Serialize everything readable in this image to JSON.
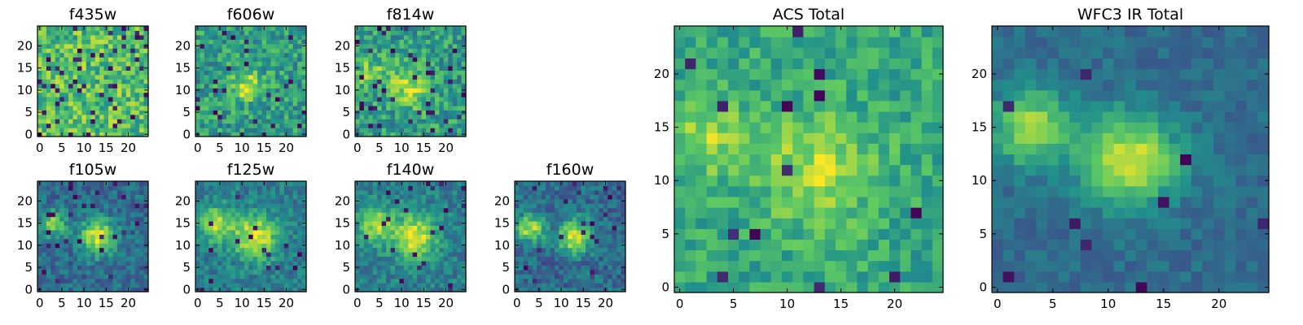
{
  "figure": {
    "colormap": "viridis",
    "colormap_stops": [
      "#440154",
      "#3b528b",
      "#21918c",
      "#5ec962",
      "#fde725"
    ]
  },
  "chart_data": [
    {
      "type": "heatmap",
      "title": "f435w",
      "grid_size": 25,
      "xticks": [
        "0",
        "5",
        "10",
        "15",
        "20"
      ],
      "yticks": [
        "0",
        "5",
        "10",
        "15",
        "20"
      ],
      "xlim": [
        -0.5,
        24.5
      ],
      "ylim": [
        -0.5,
        24.5
      ],
      "noise": 0.22,
      "dark_fraction": 0.06,
      "background": 0.7,
      "sources": []
    },
    {
      "type": "heatmap",
      "title": "f606w",
      "grid_size": 25,
      "xticks": [
        "0",
        "5",
        "10",
        "15",
        "20"
      ],
      "yticks": [
        "0",
        "5",
        "10",
        "15",
        "20"
      ],
      "xlim": [
        -0.5,
        24.5
      ],
      "ylim": [
        -0.5,
        24.5
      ],
      "noise": 0.2,
      "dark_fraction": 0.05,
      "background": 0.55,
      "sources": [
        {
          "x": 11,
          "y": 11,
          "sigma": 2.5,
          "amp": 0.35
        }
      ]
    },
    {
      "type": "heatmap",
      "title": "f814w",
      "grid_size": 25,
      "xticks": [
        "0",
        "5",
        "10",
        "15",
        "20"
      ],
      "yticks": [
        "0",
        "5",
        "10",
        "15",
        "20"
      ],
      "xlim": [
        -0.5,
        24.5
      ],
      "ylim": [
        -0.5,
        24.5
      ],
      "noise": 0.2,
      "dark_fraction": 0.05,
      "background": 0.55,
      "sources": [
        {
          "x": 12,
          "y": 11,
          "sigma": 3.5,
          "amp": 0.3
        },
        {
          "x": 3,
          "y": 14,
          "sigma": 2.5,
          "amp": 0.25
        }
      ]
    },
    {
      "type": "heatmap",
      "title": "f105w",
      "grid_size": 25,
      "xticks": [
        "0",
        "5",
        "10",
        "15",
        "20"
      ],
      "yticks": [
        "0",
        "5",
        "10",
        "15",
        "20"
      ],
      "xlim": [
        -0.5,
        24.5
      ],
      "ylim": [
        -0.5,
        24.5
      ],
      "noise": 0.14,
      "dark_fraction": 0.04,
      "background": 0.35,
      "sources": [
        {
          "x": 13,
          "y": 12,
          "sigma": 2.8,
          "amp": 0.6
        },
        {
          "x": 3,
          "y": 15,
          "sigma": 2,
          "amp": 0.5
        }
      ]
    },
    {
      "type": "heatmap",
      "title": "f125w",
      "grid_size": 25,
      "xticks": [
        "0",
        "5",
        "10",
        "15",
        "20"
      ],
      "yticks": [
        "0",
        "5",
        "10",
        "15",
        "20"
      ],
      "xlim": [
        -0.5,
        24.5
      ],
      "ylim": [
        -0.5,
        24.5
      ],
      "noise": 0.13,
      "dark_fraction": 0.03,
      "background": 0.42,
      "sources": [
        {
          "x": 13,
          "y": 12,
          "sigma": 3.5,
          "amp": 0.55
        },
        {
          "x": 4,
          "y": 15,
          "sigma": 2.8,
          "amp": 0.45
        }
      ]
    },
    {
      "type": "heatmap",
      "title": "f140w",
      "grid_size": 25,
      "xticks": [
        "0",
        "5",
        "10",
        "15",
        "20"
      ],
      "yticks": [
        "0",
        "5",
        "10",
        "15",
        "20"
      ],
      "xlim": [
        -0.5,
        24.5
      ],
      "ylim": [
        -0.5,
        24.5
      ],
      "noise": 0.13,
      "dark_fraction": 0.03,
      "background": 0.42,
      "sources": [
        {
          "x": 13,
          "y": 12,
          "sigma": 3.5,
          "amp": 0.55
        },
        {
          "x": 4,
          "y": 15,
          "sigma": 2.8,
          "amp": 0.45
        }
      ]
    },
    {
      "type": "heatmap",
      "title": "f160w",
      "grid_size": 25,
      "xticks": [
        "0",
        "5",
        "10",
        "15",
        "20"
      ],
      "yticks": [
        "0",
        "5",
        "10",
        "15",
        "20"
      ],
      "xlim": [
        -0.5,
        24.5
      ],
      "ylim": [
        -0.5,
        24.5
      ],
      "noise": 0.14,
      "dark_fraction": 0.04,
      "background": 0.35,
      "sources": [
        {
          "x": 13,
          "y": 12,
          "sigma": 2.6,
          "amp": 0.6
        },
        {
          "x": 3,
          "y": 14,
          "sigma": 2.2,
          "amp": 0.55
        }
      ]
    },
    {
      "type": "heatmap",
      "title": "ACS Total",
      "grid_size": 25,
      "xticks": [
        "0",
        "5",
        "10",
        "15",
        "20"
      ],
      "yticks": [
        "0",
        "5",
        "10",
        "15",
        "20"
      ],
      "xlim": [
        -0.5,
        24.5
      ],
      "ylim": [
        -0.5,
        24.5
      ],
      "noise": 0.14,
      "dark_fraction": 0.03,
      "background": 0.6,
      "sources": [
        {
          "x": 13,
          "y": 11,
          "sigma": 3.5,
          "amp": 0.3
        },
        {
          "x": 3,
          "y": 14,
          "sigma": 2.5,
          "amp": 0.25
        }
      ]
    },
    {
      "type": "heatmap",
      "title": "WFC3 IR Total",
      "grid_size": 25,
      "xticks": [
        "0",
        "5",
        "10",
        "15",
        "20"
      ],
      "yticks": [
        "0",
        "5",
        "10",
        "15",
        "20"
      ],
      "xlim": [
        -0.5,
        24.5
      ],
      "ylim": [
        -0.5,
        24.5
      ],
      "noise": 0.08,
      "dark_fraction": 0.015,
      "background": 0.35,
      "sources": [
        {
          "x": 12,
          "y": 12,
          "sigma": 3,
          "amp": 0.6
        },
        {
          "x": 3,
          "y": 15,
          "sigma": 2.5,
          "amp": 0.5
        }
      ]
    }
  ]
}
